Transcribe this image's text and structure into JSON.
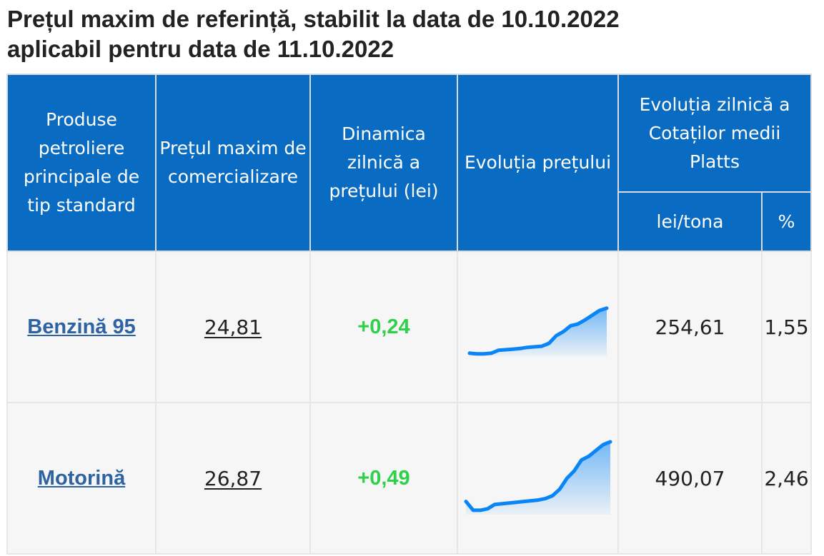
{
  "title_line1": "Prețul maxim de referință, stabilit la data de 10.10.2022",
  "title_line2": "aplicabil pentru data de 11.10.2022",
  "headers": {
    "product": "Produse petroliere principale de tip standard",
    "max_price": "Prețul maxim de comercializare",
    "daily_dynamics": "Dinamica zilnică a prețului (lei)",
    "price_evolution": "Evoluția prețului",
    "platts": "Evoluția zilnică a Cotaților medii Platts",
    "platts_lei": "lei/tona",
    "platts_pct": "%"
  },
  "rows": [
    {
      "product": "Benzină 95",
      "max_price": "24,81",
      "delta": "+0,24",
      "platts_lei": "254,61",
      "platts_pct": "1,55",
      "sparkline": [
        0.05,
        0.04,
        0.04,
        0.05,
        0.1,
        0.11,
        0.12,
        0.13,
        0.15,
        0.16,
        0.17,
        0.22,
        0.35,
        0.42,
        0.52,
        0.55,
        0.62,
        0.7,
        0.78,
        0.82
      ]
    },
    {
      "product": "Motorină",
      "max_price": "26,87",
      "delta": "+0,49",
      "platts_lei": "490,07",
      "platts_pct": "2,46",
      "sparkline": [
        0.18,
        0.06,
        0.06,
        0.08,
        0.14,
        0.15,
        0.16,
        0.17,
        0.18,
        0.19,
        0.2,
        0.22,
        0.26,
        0.35,
        0.5,
        0.6,
        0.75,
        0.8,
        0.88,
        0.96,
        1.0
      ]
    }
  ],
  "colors": {
    "header_bg": "#0a6bc2",
    "spark_line": "#0a85f5",
    "delta_positive": "#2fd14a",
    "product_link": "#2d62a3"
  }
}
